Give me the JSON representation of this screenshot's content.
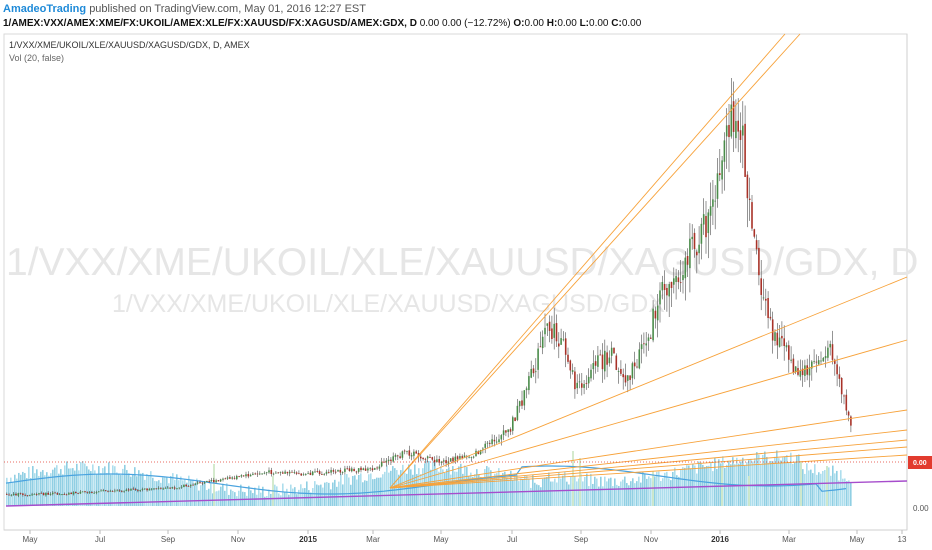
{
  "header": {
    "author": "AmadeoTrading",
    "published": "published on TradingView.com, May 01, 2016 12:27 EST",
    "symbol_full": "1/AMEX:VXX/AMEX:XME/FX:UKOIL/AMEX:XLE/FX:XAUUSD/FX:XAGUSD/AMEX:GDX, D",
    "change_text": "0.00 0.00 (−12.72%)",
    "open_label": "O:",
    "open_value": "0.00",
    "high_label": "H:",
    "high_value": "0.00",
    "low_label": "L:",
    "low_value": "0.00",
    "close_label": "C:",
    "close_value": "0.00"
  },
  "pane": {
    "legend_symbol": "1/VXX/XME/UKOIL/XLE/XAUUSD/XAGUSD/GDX, D, AMEX",
    "legend_volume": "Vol (20, false)",
    "watermark_line1": "1/VXX/XME/UKOIL/XLE/XAUUSD/XAGUSD/GDX, D",
    "watermark_line2": "1/VXX/XME/UKOIL/XLE/XAUUSD/XAGUSD/GDX"
  },
  "price_axis": {
    "last_price_label": "0.00",
    "tick_label": "0.00",
    "last_price_color": "#e23b2e"
  },
  "colors": {
    "up_candle": "#4a8c4a",
    "down_candle": "#a83228",
    "wick": "#4d4d4d",
    "fan_lines": "#f7a23a",
    "trend_line": "#a64dcc",
    "volume_up": "#9fd8ea",
    "volume_down": "#7cc7de",
    "volume_ma": "#4aa3df",
    "price_line": "#e23b2e"
  },
  "chart_data": {
    "type": "candlestick",
    "title": "1/VXX/XME/UKOIL/XLE/XAUUSD/XAGUSD/GDX, D, AMEX",
    "xlabel": "",
    "ylabel": "",
    "x_tick_labels": [
      "May",
      "Jul",
      "Sep",
      "Nov",
      "2015",
      "Mar",
      "May",
      "Jul",
      "Sep",
      "Nov",
      "2016",
      "Mar",
      "May",
      "13"
    ],
    "x_tick_bold": [
      false,
      false,
      false,
      false,
      true,
      false,
      false,
      false,
      false,
      false,
      true,
      false,
      false,
      false
    ],
    "y_tick_labels": [
      "0.00"
    ],
    "last_price": "0.00",
    "change_percent": -12.72,
    "legend": [
      "Vol (20, false)"
    ],
    "price_path": {
      "description": "daily price ratio, shape points (relative units 0-100)",
      "points": [
        [
          "2014-05",
          2.5
        ],
        [
          "2014-06",
          2.7
        ],
        [
          "2014-07",
          3.2
        ],
        [
          "2014-08",
          3.6
        ],
        [
          "2014-09",
          3.8
        ],
        [
          "2014-10",
          5.2
        ],
        [
          "2014-11",
          6.5
        ],
        [
          "2014-12",
          7.8
        ],
        [
          "2015-01",
          7.2
        ],
        [
          "2015-02",
          8.0
        ],
        [
          "2015-03",
          8.5
        ],
        [
          "2015-04",
          12.5
        ],
        [
          "2015-05",
          10.0
        ],
        [
          "2015-06",
          12.0
        ],
        [
          "2015-07",
          17.5
        ],
        [
          "2015-07-20",
          30
        ],
        [
          "2015-08-05",
          42
        ],
        [
          "2015-08-20",
          37
        ],
        [
          "2015-09-01",
          27
        ],
        [
          "2015-09-15",
          33
        ],
        [
          "2015-10-01",
          35
        ],
        [
          "2015-10-15",
          30
        ],
        [
          "2015-11-01",
          38
        ],
        [
          "2015-11-15",
          50
        ],
        [
          "2015-12-01",
          55
        ],
        [
          "2015-12-15",
          62
        ],
        [
          "2016-01-01",
          70
        ],
        [
          "2016-01-10",
          82
        ],
        [
          "2016-01-20",
          96
        ],
        [
          "2016-02-01",
          75
        ],
        [
          "2016-02-10",
          53
        ],
        [
          "2016-02-20",
          42
        ],
        [
          "2016-03-01",
          38
        ],
        [
          "2016-03-15",
          30
        ],
        [
          "2016-04-01",
          34
        ],
        [
          "2016-04-15",
          36
        ],
        [
          "2016-04-22",
          28
        ],
        [
          "2016-05-01",
          18
        ]
      ]
    }
  }
}
